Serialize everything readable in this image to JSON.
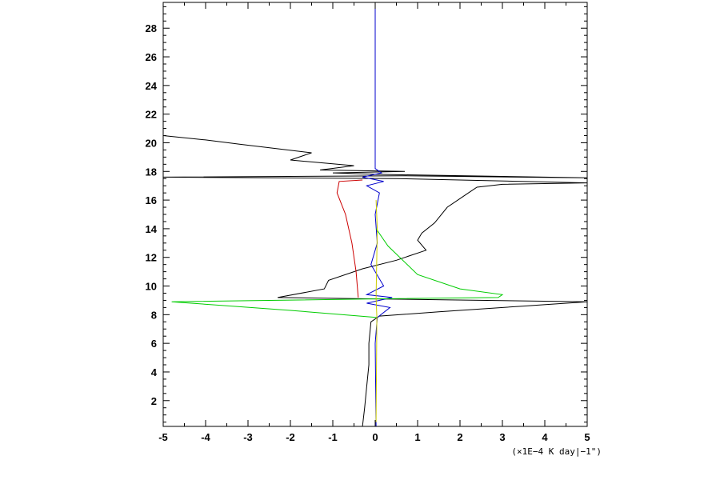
{
  "chart_data": {
    "type": "line",
    "title": "",
    "xlabel": "",
    "ylabel": "",
    "x_unit_label": "(×1E−4 K day|−1\")",
    "xlim": [
      -5,
      5
    ],
    "ylim": [
      0.2,
      29.8
    ],
    "x_ticks": [
      -5,
      -4,
      -3,
      -2,
      -1,
      0,
      1,
      2,
      3,
      4,
      5
    ],
    "y_ticks": [
      2,
      4,
      6,
      8,
      10,
      12,
      14,
      16,
      18,
      20,
      22,
      24,
      26,
      28
    ],
    "grid": false,
    "legend": "none",
    "series": [
      {
        "color": "#000000",
        "points": [
          [
            -0.3,
            0.2
          ],
          [
            -0.25,
            1.5
          ],
          [
            -0.2,
            3
          ],
          [
            -0.15,
            4.5
          ],
          [
            -0.15,
            6
          ],
          [
            -0.1,
            7.5
          ],
          [
            0.1,
            7.9
          ],
          [
            1.5,
            8.2
          ],
          [
            3.5,
            8.6
          ],
          [
            5.0,
            8.9
          ],
          [
            0.0,
            9.1
          ],
          [
            -2.3,
            9.2
          ],
          [
            -1.2,
            9.8
          ],
          [
            -1.1,
            10.4
          ],
          [
            -0.3,
            11.2
          ],
          [
            0.5,
            11.8
          ],
          [
            1.2,
            12.5
          ],
          [
            1.0,
            13.2
          ],
          [
            1.1,
            13.7
          ],
          [
            1.4,
            14.4
          ],
          [
            1.7,
            15.5
          ],
          [
            2.2,
            16.5
          ],
          [
            2.4,
            16.9
          ],
          [
            3.0,
            17.1
          ],
          [
            5.0,
            17.2
          ],
          [
            0.5,
            17.5
          ],
          [
            -5.0,
            17.6
          ],
          [
            0.6,
            17.7
          ],
          [
            5.0,
            17.55
          ],
          [
            0.0,
            17.8
          ],
          [
            -1.0,
            17.9
          ],
          [
            0.7,
            18.0
          ],
          [
            -1.3,
            18.1
          ],
          [
            -0.5,
            18.4
          ],
          [
            -2.0,
            18.8
          ],
          [
            -1.5,
            19.3
          ],
          [
            -3.2,
            19.9
          ],
          [
            -4.0,
            20.2
          ],
          [
            -5.0,
            20.5
          ]
        ]
      },
      {
        "color": "#0000cc",
        "points": [
          [
            0.02,
            0.2
          ],
          [
            0.0,
            6
          ],
          [
            0.05,
            7.8
          ],
          [
            0.35,
            8.5
          ],
          [
            -0.2,
            8.8
          ],
          [
            0.4,
            9.2
          ],
          [
            -0.2,
            9.4
          ],
          [
            0.2,
            10
          ],
          [
            -0.1,
            11.5
          ],
          [
            0.05,
            13
          ],
          [
            0.0,
            15
          ],
          [
            0.1,
            16.5
          ],
          [
            -0.2,
            17.0
          ],
          [
            0.2,
            17.3
          ],
          [
            -0.3,
            17.6
          ],
          [
            0.15,
            17.9
          ],
          [
            0.0,
            18.2
          ],
          [
            0.0,
            29.8
          ]
        ]
      },
      {
        "color": "#cc0000",
        "points": [
          [
            -0.4,
            9.2
          ],
          [
            -0.45,
            11
          ],
          [
            -0.55,
            13
          ],
          [
            -0.7,
            15
          ],
          [
            -0.9,
            16.5
          ],
          [
            -0.85,
            17.3
          ],
          [
            -0.3,
            17.4
          ]
        ]
      },
      {
        "color": "#00cc00",
        "points": [
          [
            0.05,
            7.8
          ],
          [
            -2.0,
            8.3
          ],
          [
            -4.8,
            8.9
          ],
          [
            0.0,
            9.1
          ],
          [
            2.9,
            9.2
          ],
          [
            3.0,
            9.4
          ],
          [
            2.0,
            9.8
          ],
          [
            1.0,
            10.8
          ],
          [
            0.3,
            12.8
          ],
          [
            0.02,
            14.0
          ]
        ]
      },
      {
        "color": "#cccc00",
        "points": [
          [
            0.02,
            0.5
          ],
          [
            0.04,
            7.8
          ],
          [
            0.02,
            9.2
          ],
          [
            0.05,
            14.0
          ],
          [
            0.02,
            16.0
          ]
        ]
      }
    ]
  }
}
